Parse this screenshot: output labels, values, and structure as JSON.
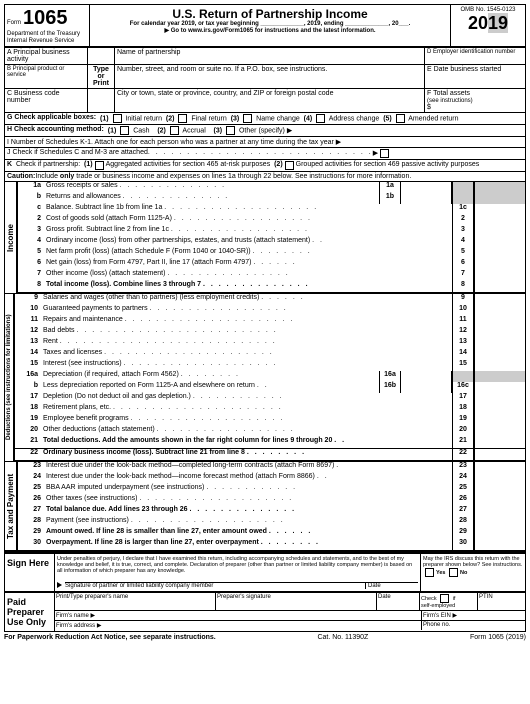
{
  "header": {
    "form_label": "Form",
    "form_number": "1065",
    "dept": "Department of the Treasury",
    "irs": "Internal Revenue Service",
    "title": "U.S. Return of Partnership Income",
    "calendar_line": "For calendar year 2019, or tax year beginning _____________, 2019, ending _____________, 20___.",
    "goto": "▶ Go to www.irs.gov/Form1065 for instructions and the latest information.",
    "omb": "OMB No. 1545-0123",
    "year": "2019"
  },
  "top_boxes": {
    "a": "A  Principal business activity",
    "b": "B  Principal product or service",
    "c": "C  Business code number",
    "name": "Name of partnership",
    "street": "Number, street, and room or suite no. If a P.O. box, see instructions.",
    "city": "City or town, state or province, country, and ZIP or foreign postal code",
    "type_or_print": "Type or Print",
    "d": "D  Employer identification number",
    "e": "E  Date business started",
    "f": "F  Total assets",
    "f2": "(see instructions)",
    "dollar": "$"
  },
  "checks": {
    "g": "G  Check applicable boxes:",
    "g1": "(1)       Initial return",
    "g2": "(2)       Final return",
    "g3": "(3)       Name change",
    "g4": "(4)       Address change",
    "g5": "(5)       Amended return",
    "h": "H  Check accounting method:",
    "h1": "(1)       Cash",
    "h2": "(2)       Accrual",
    "h3": "(3)       Other (specify) ▶",
    "i": "I   Number of Schedules K-1. Attach one for each person who was a partner at any time during the tax year ▶",
    "j": "J   Check if Schedules C and M-3 are attached",
    "k": "K  Check if partnership:  (1)      Aggregated activities for section 465 at-risk purposes   (2)      Grouped activities for section 469 passive activity purposes"
  },
  "caution": "Caution: Include only trade or business income and expenses on lines 1a through 22 below. See instructions for more information.",
  "income_label": "Income",
  "deductions_label": "Deductions (see instructions for limitations)",
  "tax_label": "Tax and Payment",
  "lines": {
    "l1a": {
      "n": "1a",
      "d": "Gross receipts or sales",
      "mid": "1a"
    },
    "l1b": {
      "n": "b",
      "d": "Returns and allowances",
      "mid": "1b"
    },
    "l1c": {
      "n": "c",
      "d": "Balance. Subtract line 1b from line 1a",
      "box": "1c"
    },
    "l2": {
      "n": "2",
      "d": "Cost of goods sold (attach Form 1125-A)",
      "box": "2"
    },
    "l3": {
      "n": "3",
      "d": "Gross profit. Subtract line 2 from line 1c",
      "box": "3"
    },
    "l4": {
      "n": "4",
      "d": "Ordinary income (loss) from other partnerships, estates, and trusts (attach statement)",
      "box": "4"
    },
    "l5": {
      "n": "5",
      "d": "Net farm profit (loss) (attach Schedule F (Form 1040 or 1040-SR))",
      "box": "5"
    },
    "l6": {
      "n": "6",
      "d": "Net gain (loss) from Form 4797, Part II, line 17 (attach Form 4797)",
      "box": "6"
    },
    "l7": {
      "n": "7",
      "d": "Other income (loss) (attach statement)",
      "box": "7"
    },
    "l8": {
      "n": "8",
      "d": "Total income (loss). Combine lines 3 through 7",
      "box": "8",
      "bold": true
    },
    "l9": {
      "n": "9",
      "d": "Salaries and wages (other than to partners) (less employment credits)",
      "box": "9"
    },
    "l10": {
      "n": "10",
      "d": "Guaranteed payments to partners",
      "box": "10"
    },
    "l11": {
      "n": "11",
      "d": "Repairs and maintenance",
      "box": "11"
    },
    "l12": {
      "n": "12",
      "d": "Bad debts",
      "box": "12"
    },
    "l13": {
      "n": "13",
      "d": "Rent",
      "box": "13"
    },
    "l14": {
      "n": "14",
      "d": "Taxes and licenses",
      "box": "14"
    },
    "l15": {
      "n": "15",
      "d": "Interest (see instructions)",
      "box": "15"
    },
    "l16a": {
      "n": "16a",
      "d": "Depreciation (if required, attach Form 4562)",
      "mid": "16a"
    },
    "l16b": {
      "n": "b",
      "d": "Less depreciation reported on Form 1125-A and elsewhere on return",
      "mid": "16b",
      "box": "16c"
    },
    "l17": {
      "n": "17",
      "d": "Depletion (Do not deduct oil and gas depletion.)",
      "box": "17"
    },
    "l18": {
      "n": "18",
      "d": "Retirement plans, etc.",
      "box": "18"
    },
    "l19": {
      "n": "19",
      "d": "Employee benefit programs",
      "box": "19"
    },
    "l20": {
      "n": "20",
      "d": "Other deductions (attach statement)",
      "box": "20"
    },
    "l21": {
      "n": "21",
      "d": "Total deductions. Add the amounts shown in the far right column for lines 9 through 20",
      "box": "21",
      "bold": true
    },
    "l22": {
      "n": "22",
      "d": "Ordinary business income (loss). Subtract line 21 from line 8",
      "box": "22",
      "bold": true
    },
    "l23": {
      "n": "23",
      "d": "Interest due under the look-back method—completed long-term contracts (attach Form 8697)",
      "box": "23"
    },
    "l24": {
      "n": "24",
      "d": "Interest due under the look-back method—income forecast method (attach Form 8866)",
      "box": "24"
    },
    "l25": {
      "n": "25",
      "d": "BBA AAR imputed underpayment (see instructions)",
      "box": "25"
    },
    "l26": {
      "n": "26",
      "d": "Other taxes (see instructions)",
      "box": "26"
    },
    "l27": {
      "n": "27",
      "d": "Total balance due. Add lines 23 through 26",
      "box": "27",
      "bold": true
    },
    "l28": {
      "n": "28",
      "d": "Payment (see instructions)",
      "box": "28"
    },
    "l29": {
      "n": "29",
      "d": "Amount owed. If line 28 is smaller than line 27, enter amount owed",
      "box": "29",
      "bold": true
    },
    "l30": {
      "n": "30",
      "d": "Overpayment. If line 28 is larger than line 27, enter overpayment",
      "box": "30",
      "bold": true
    }
  },
  "sign": {
    "here": "Sign Here",
    "perjury": "Under penalties of perjury, I declare that I have examined this return, including accompanying schedules and statements, and to the best of my knowledge and belief, it is true, correct, and complete. Declaration of preparer (other than partner or limited liability company member) is based on all information of which preparer has any knowledge.",
    "sig_label": "Signature of partner or limited liability company member",
    "date": "Date",
    "discuss": "May the IRS discuss this return with the preparer shown below? See instructions.",
    "yes": "Yes",
    "no": "No"
  },
  "preparer": {
    "label": "Paid Preparer Use Only",
    "name": "Print/Type preparer's name",
    "sig": "Preparer's signature",
    "date": "Date",
    "check": "Check        if self-employed",
    "ptin": "PTIN",
    "firm_name": "Firm's name    ▶",
    "firm_ein": "Firm's EIN ▶",
    "firm_addr": "Firm's address ▶",
    "phone": "Phone no."
  },
  "footer": {
    "left": "For Paperwork Reduction Act Notice, see separate instructions.",
    "mid": "Cat. No. 11390Z",
    "right": "Form 1065 (2019)"
  }
}
